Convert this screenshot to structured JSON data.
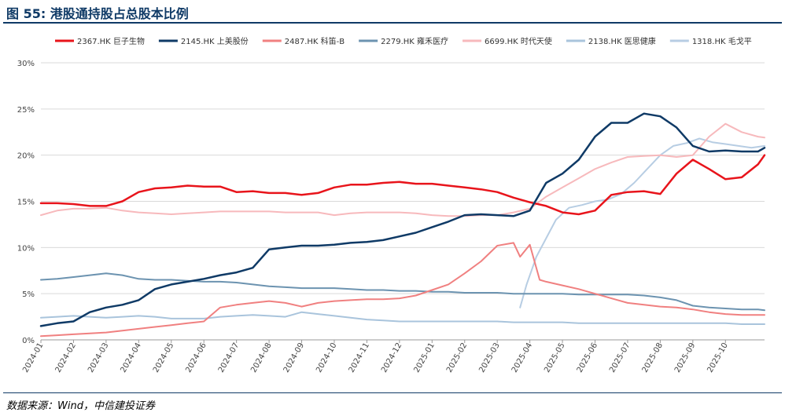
{
  "header": {
    "title": "图 55: 港股通持股占总股本比例"
  },
  "footer": {
    "source": "数据来源：Wind，中信建投证券"
  },
  "chart_data": {
    "type": "line",
    "title": "港股通持股占总股本比例",
    "xlabel": "",
    "ylabel": "",
    "ylim": [
      0,
      30
    ],
    "y_ticks": [
      "0%",
      "5%",
      "10%",
      "15%",
      "20%",
      "25%",
      "30%"
    ],
    "x_tick_labels": [
      "2024-01",
      "2024-02",
      "2024-03",
      "2024-04",
      "2024-05",
      "2024-06",
      "2024-07",
      "2024-08",
      "2024-09",
      "2024-10",
      "2024-11",
      "2024-12",
      "2025-01",
      "2025-02",
      "2025-03",
      "2025-04",
      "2025-05",
      "2025-06",
      "2025-07",
      "2025-08",
      "2025-09",
      "2025-10"
    ],
    "x_range": [
      0,
      22.2
    ],
    "legend_position": "top",
    "series": [
      {
        "name": "2367.HK 巨子生物",
        "color": "#e8141b",
        "width": 2.5,
        "x": [
          0,
          0.5,
          1,
          1.5,
          2,
          2.5,
          3,
          3.5,
          4,
          4.5,
          5,
          5.5,
          6,
          6.5,
          7,
          7.5,
          8,
          8.5,
          9,
          9.5,
          10,
          10.5,
          11,
          11.5,
          12,
          12.5,
          13,
          13.5,
          14,
          14.5,
          15,
          15.5,
          16,
          16.5,
          17,
          17.5,
          18,
          18.5,
          19,
          19.5,
          20,
          20.5,
          21,
          21.5,
          22,
          22.2
        ],
        "y": [
          14.8,
          14.8,
          14.7,
          14.5,
          14.5,
          15.0,
          16.0,
          16.4,
          16.5,
          16.7,
          16.6,
          16.6,
          16.0,
          16.1,
          15.9,
          15.9,
          15.7,
          15.9,
          16.5,
          16.8,
          16.8,
          17.0,
          17.1,
          16.9,
          16.9,
          16.7,
          16.5,
          16.3,
          16.0,
          15.4,
          14.9,
          14.5,
          13.8,
          13.6,
          14.0,
          15.7,
          16.0,
          16.1,
          15.8,
          18.0,
          19.5,
          18.5,
          17.4,
          17.6,
          19.0,
          20.0
        ]
      },
      {
        "name": "2145.HK 上美股份",
        "color": "#0f3a66",
        "width": 2.5,
        "x": [
          0,
          0.5,
          1,
          1.5,
          2,
          2.5,
          3,
          3.5,
          4,
          4.5,
          5,
          5.5,
          6,
          6.5,
          7,
          7.5,
          8,
          8.5,
          9,
          9.5,
          10,
          10.5,
          11,
          11.5,
          12,
          12.5,
          13,
          13.5,
          14,
          14.5,
          15,
          15.5,
          16,
          16.5,
          17,
          17.5,
          18,
          18.5,
          19,
          19.5,
          20,
          20.5,
          21,
          21.5,
          22,
          22.2
        ],
        "y": [
          1.5,
          1.8,
          2.0,
          3.0,
          3.5,
          3.8,
          4.3,
          5.5,
          6.0,
          6.3,
          6.6,
          7.0,
          7.3,
          7.8,
          9.8,
          10.0,
          10.2,
          10.2,
          10.3,
          10.5,
          10.6,
          10.8,
          11.2,
          11.6,
          12.2,
          12.8,
          13.5,
          13.6,
          13.5,
          13.4,
          14.0,
          17.0,
          18.0,
          19.5,
          22.0,
          23.5,
          23.5,
          24.5,
          24.2,
          23.0,
          21.0,
          20.4,
          20.5,
          20.4,
          20.4,
          20.8
        ]
      },
      {
        "name": "2487.HK 科笛-B",
        "color": "#f08080",
        "width": 2,
        "x": [
          0,
          0.5,
          1,
          1.5,
          2,
          2.5,
          3,
          3.5,
          4,
          4.5,
          5,
          5.5,
          6,
          6.5,
          7,
          7.5,
          8,
          8.5,
          9,
          9.5,
          10,
          10.5,
          11,
          11.5,
          12,
          12.5,
          13,
          13.5,
          14,
          14.5,
          14.7,
          15,
          15.3,
          15.5,
          16,
          16.5,
          17,
          17.5,
          18,
          18.5,
          19,
          19.5,
          20,
          20.5,
          21,
          21.5,
          22,
          22.2
        ],
        "y": [
          0.4,
          0.5,
          0.6,
          0.7,
          0.8,
          1.0,
          1.2,
          1.4,
          1.6,
          1.8,
          2.0,
          3.5,
          3.8,
          4.0,
          4.2,
          4.0,
          3.6,
          4.0,
          4.2,
          4.3,
          4.4,
          4.4,
          4.5,
          4.8,
          5.4,
          6.0,
          7.2,
          8.5,
          10.2,
          10.5,
          9.0,
          10.3,
          6.5,
          6.3,
          5.9,
          5.5,
          5.0,
          4.5,
          4.0,
          3.8,
          3.6,
          3.5,
          3.3,
          3.0,
          2.8,
          2.7,
          2.7,
          2.7
        ]
      },
      {
        "name": "2279.HK 雍禾医疗",
        "color": "#6c93b0",
        "width": 2,
        "x": [
          0,
          0.5,
          1,
          1.5,
          2,
          2.5,
          3,
          3.5,
          4,
          4.5,
          5,
          5.5,
          6,
          6.5,
          7,
          7.5,
          8,
          8.5,
          9,
          9.5,
          10,
          10.5,
          11,
          11.5,
          12,
          12.5,
          13,
          13.5,
          14,
          14.5,
          15,
          15.5,
          16,
          16.5,
          17,
          17.5,
          18,
          18.5,
          19,
          19.5,
          20,
          20.5,
          21,
          21.5,
          22,
          22.2
        ],
        "y": [
          6.5,
          6.6,
          6.8,
          7.0,
          7.2,
          7.0,
          6.6,
          6.5,
          6.5,
          6.4,
          6.3,
          6.3,
          6.2,
          6.0,
          5.8,
          5.7,
          5.6,
          5.6,
          5.6,
          5.5,
          5.4,
          5.4,
          5.3,
          5.3,
          5.2,
          5.2,
          5.1,
          5.1,
          5.1,
          5.0,
          5.0,
          5.0,
          5.0,
          4.9,
          4.9,
          4.9,
          4.9,
          4.8,
          4.6,
          4.3,
          3.7,
          3.5,
          3.4,
          3.3,
          3.3,
          3.2
        ]
      },
      {
        "name": "6699.HK 时代天使",
        "color": "#f7b9bc",
        "width": 2,
        "x": [
          0,
          0.5,
          1,
          1.5,
          2,
          2.5,
          3,
          3.5,
          4,
          4.5,
          5,
          5.5,
          6,
          6.5,
          7,
          7.5,
          8,
          8.5,
          9,
          9.5,
          10,
          10.5,
          11,
          11.5,
          12,
          12.5,
          13,
          13.5,
          14,
          14.5,
          15,
          15.5,
          16,
          16.5,
          17,
          17.5,
          18,
          18.5,
          19,
          19.5,
          20,
          20.5,
          21,
          21.5,
          22,
          22.2
        ],
        "y": [
          13.5,
          14.0,
          14.2,
          14.2,
          14.3,
          14.0,
          13.8,
          13.7,
          13.6,
          13.7,
          13.8,
          13.9,
          13.9,
          13.9,
          13.9,
          13.8,
          13.8,
          13.8,
          13.5,
          13.7,
          13.8,
          13.8,
          13.8,
          13.7,
          13.5,
          13.4,
          13.4,
          13.5,
          13.5,
          13.8,
          14.2,
          15.5,
          16.5,
          17.5,
          18.5,
          19.2,
          19.8,
          19.9,
          20.0,
          19.8,
          20.0,
          22.0,
          23.4,
          22.5,
          22.0,
          21.9
        ]
      },
      {
        "name": "2138.HK 医思健康",
        "color": "#a9c4dc",
        "width": 2,
        "x": [
          0,
          0.5,
          1,
          1.5,
          2,
          2.5,
          3,
          3.5,
          4,
          4.5,
          5,
          5.5,
          6,
          6.5,
          7,
          7.5,
          8,
          8.5,
          9,
          9.5,
          10,
          10.5,
          11,
          11.5,
          12,
          12.5,
          13,
          13.5,
          14,
          14.5,
          15,
          15.5,
          16,
          16.5,
          17,
          17.5,
          18,
          18.5,
          19,
          19.5,
          20,
          20.5,
          21,
          21.5,
          22,
          22.2
        ],
        "y": [
          2.4,
          2.5,
          2.6,
          2.5,
          2.4,
          2.5,
          2.6,
          2.5,
          2.3,
          2.3,
          2.3,
          2.5,
          2.6,
          2.7,
          2.6,
          2.5,
          3.0,
          2.8,
          2.6,
          2.4,
          2.2,
          2.1,
          2.0,
          2.0,
          2.0,
          2.0,
          2.0,
          2.0,
          2.0,
          1.9,
          1.9,
          1.9,
          1.9,
          1.8,
          1.8,
          1.8,
          1.8,
          1.8,
          1.8,
          1.8,
          1.8,
          1.8,
          1.8,
          1.7,
          1.7,
          1.7
        ]
      },
      {
        "name": "1318.HK 毛戈平",
        "color": "#b7cde3",
        "width": 2,
        "x": [
          14.7,
          14.9,
          15.2,
          15.5,
          15.8,
          16.2,
          16.6,
          17.0,
          17.4,
          17.8,
          18.2,
          18.6,
          19.0,
          19.4,
          19.8,
          20.2,
          20.6,
          21.0,
          21.4,
          21.8,
          22.2
        ],
        "y": [
          3.5,
          6.0,
          9.0,
          11.0,
          13.0,
          14.3,
          14.6,
          15.0,
          15.2,
          15.8,
          17.0,
          18.5,
          20.0,
          21.0,
          21.3,
          21.8,
          21.4,
          21.2,
          21.0,
          20.8,
          21.0
        ]
      }
    ]
  }
}
